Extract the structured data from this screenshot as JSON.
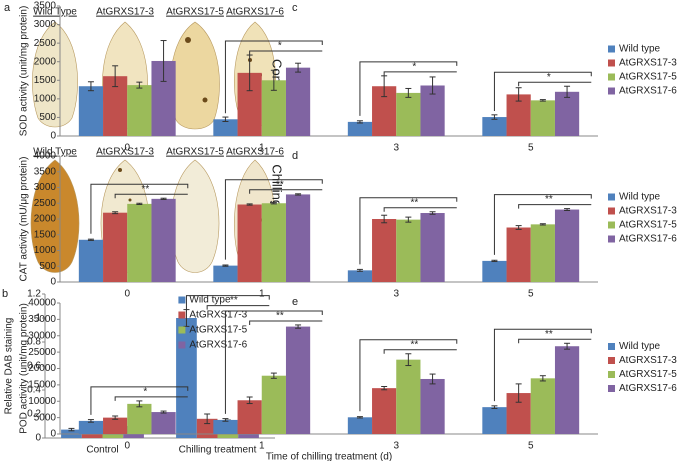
{
  "photo_panel": {
    "label": "a",
    "control_columns": [
      "Wild Type",
      "AtGRXS17-3",
      "AtGRXS17-5",
      "AtGRXS17-6"
    ],
    "chilling_columns": [
      "Wild Type",
      "AtGRXS17-3",
      "AtGRXS17-5",
      "AtGRXS17-6"
    ],
    "rows": [
      "Control",
      "Chilling treatment"
    ]
  },
  "chart_data": [
    {
      "type": "bar",
      "panel_label": "b",
      "y_label": "Relative DAB staining",
      "categories": [
        "Control",
        "Chilling treatment"
      ],
      "series": [
        {
          "name": "Wild type",
          "color": "#4f81bd",
          "values": [
            0.07,
            1.0
          ],
          "errors": [
            0.01,
            0.07
          ]
        },
        {
          "name": "AtGRXS17-3",
          "color": "#c0504d",
          "values": [
            0.08,
            0.16
          ],
          "errors": [
            0.03,
            0.04
          ]
        },
        {
          "name": "AtGRXS17-5",
          "color": "#9bbb59",
          "values": [
            0.08,
            0.12
          ],
          "errors": [
            0.03,
            0.03
          ]
        },
        {
          "name": "AtGRXS17-6",
          "color": "#8064a2",
          "values": [
            0.1,
            0.18
          ],
          "errors": [
            0.03,
            0.02
          ]
        }
      ],
      "annotations": [
        null,
        "**"
      ],
      "ylim": [
        0,
        1.2
      ],
      "yticks": [
        0,
        0.2,
        0.4,
        0.6,
        0.8,
        1,
        1.2
      ],
      "legend": "upper center"
    },
    {
      "type": "bar",
      "panel_label": "c",
      "y_label": "SOD activity (unit/mg protein)",
      "categories": [
        "0",
        "1",
        "3",
        "5"
      ],
      "series": [
        {
          "name": "Wild type",
          "color": "#4f81bd",
          "values": [
            1340,
            450,
            380,
            510
          ],
          "errors": [
            120,
            60,
            30,
            60
          ]
        },
        {
          "name": "AtGRXS17-3",
          "color": "#c0504d",
          "values": [
            1610,
            1700,
            1340,
            1120
          ],
          "errors": [
            280,
            480,
            280,
            180
          ]
        },
        {
          "name": "AtGRXS17-5",
          "color": "#9bbb59",
          "values": [
            1370,
            1500,
            1160,
            960
          ],
          "errors": [
            80,
            270,
            120,
            20
          ]
        },
        {
          "name": "AtGRXS17-6",
          "color": "#8064a2",
          "values": [
            2020,
            1840,
            1360,
            1190
          ],
          "errors": [
            550,
            120,
            230,
            150
          ]
        }
      ],
      "annotations": [
        null,
        "*",
        "*",
        "*"
      ],
      "ylim": [
        0,
        3500
      ],
      "yticks": [
        0,
        500,
        1000,
        1500,
        2000,
        2500,
        3000,
        3500
      ],
      "legend": "right"
    },
    {
      "type": "bar",
      "panel_label": "d",
      "y_label": "CAT activity (mU/μg protein)",
      "categories": [
        "0",
        "1",
        "3",
        "5"
      ],
      "series": [
        {
          "name": "Wild type",
          "color": "#4f81bd",
          "values": [
            1340,
            520,
            370,
            670
          ],
          "errors": [
            20,
            20,
            30,
            20
          ]
        },
        {
          "name": "AtGRXS17-3",
          "color": "#c0504d",
          "values": [
            2200,
            2460,
            2000,
            1730
          ],
          "errors": [
            30,
            20,
            120,
            60
          ]
        },
        {
          "name": "AtGRXS17-5",
          "color": "#9bbb59",
          "values": [
            2480,
            2500,
            1980,
            1830
          ],
          "errors": [
            20,
            20,
            80,
            20
          ]
        },
        {
          "name": "AtGRXS17-6",
          "color": "#8064a2",
          "values": [
            2640,
            2780,
            2190,
            2300
          ],
          "errors": [
            20,
            20,
            40,
            30
          ]
        }
      ],
      "annotations": [
        "**",
        "**",
        "**",
        "**"
      ],
      "ylim": [
        0,
        4000
      ],
      "yticks": [
        0,
        500,
        1000,
        1500,
        2000,
        2500,
        3000,
        3500,
        4000
      ],
      "legend": "right"
    },
    {
      "type": "bar",
      "panel_label": "e",
      "y_label": "POD activity (unit/mg protein)",
      "x_label": "Time of chilling treatment (d)",
      "categories": [
        "0",
        "1",
        "3",
        "5"
      ],
      "series": [
        {
          "name": "Wild type",
          "color": "#4f81bd",
          "values": [
            4000,
            4300,
            5100,
            8200
          ],
          "errors": [
            400,
            400,
            200,
            400
          ]
        },
        {
          "name": "AtGRXS17-3",
          "color": "#c0504d",
          "values": [
            5000,
            10300,
            14000,
            12500
          ],
          "errors": [
            500,
            1000,
            500,
            2800
          ]
        },
        {
          "name": "AtGRXS17-5",
          "color": "#9bbb59",
          "values": [
            9200,
            17800,
            22700,
            17000
          ],
          "errors": [
            900,
            800,
            1800,
            800
          ]
        },
        {
          "name": "AtGRXS17-6",
          "color": "#8064a2",
          "values": [
            6700,
            32800,
            16800,
            26800
          ],
          "errors": [
            300,
            500,
            1500,
            900
          ]
        }
      ],
      "annotations": [
        "*",
        "**",
        "**",
        "**"
      ],
      "ylim": [
        0,
        40000
      ],
      "yticks": [
        0,
        5000,
        10000,
        15000,
        20000,
        25000,
        30000,
        35000,
        40000
      ],
      "legend": "right"
    }
  ]
}
